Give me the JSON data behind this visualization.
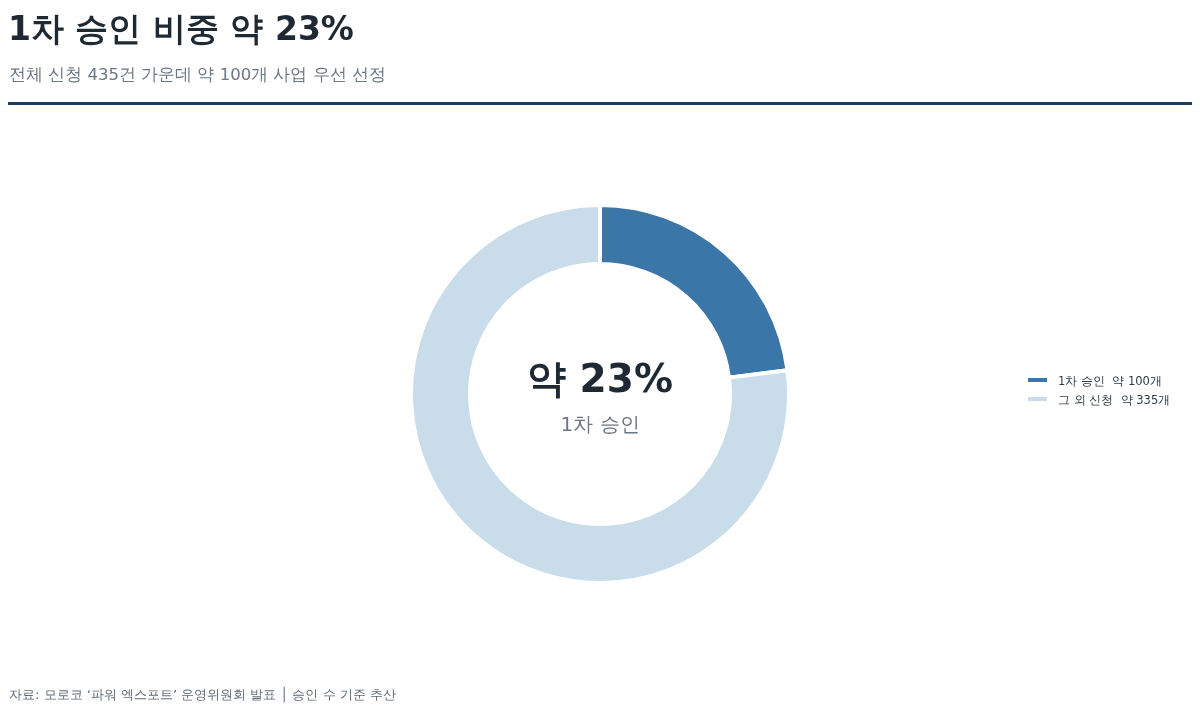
{
  "chart_data": {
    "type": "donut",
    "title": "1차 승인 비중 약 23%",
    "subtitle": "전체 신청 435건 가운데 약 100개 사업 우선 선정",
    "categories": [
      "1차 승인  약 100개",
      "그 외 신청  약 335개"
    ],
    "values": [
      100,
      335
    ],
    "colors": [
      "#3a76a8",
      "#c9dcea"
    ],
    "legend": "right",
    "annotations": [
      "약 23%",
      "1차 승인",
      "자료: 모로코 ‘파워 엑스포트’ 운영위원회 발표 │ 승인 수 기준 추산"
    ]
  }
}
